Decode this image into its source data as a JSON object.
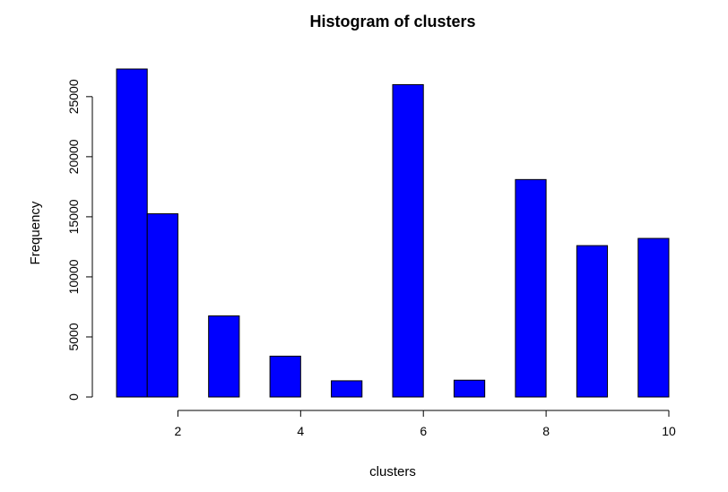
{
  "chart_data": {
    "type": "bar",
    "title": "Histogram of clusters",
    "xlabel": "clusters",
    "ylabel": "Frequency",
    "bar_color": "#0000ff",
    "xlim": [
      1,
      10
    ],
    "ylim": [
      0,
      27300
    ],
    "x_ticks": [
      2,
      4,
      6,
      8,
      10
    ],
    "y_ticks": [
      0,
      5000,
      10000,
      15000,
      20000,
      25000
    ],
    "bins": [
      {
        "start": 1.0,
        "end": 1.5,
        "value": 27300
      },
      {
        "start": 1.5,
        "end": 2.0,
        "value": 15250
      },
      {
        "start": 2.5,
        "end": 3.0,
        "value": 6750
      },
      {
        "start": 3.5,
        "end": 4.0,
        "value": 3400
      },
      {
        "start": 4.5,
        "end": 5.0,
        "value": 1350
      },
      {
        "start": 5.5,
        "end": 6.0,
        "value": 26000
      },
      {
        "start": 6.5,
        "end": 7.0,
        "value": 1400
      },
      {
        "start": 7.5,
        "end": 8.0,
        "value": 18100
      },
      {
        "start": 8.5,
        "end": 9.0,
        "value": 12600
      },
      {
        "start": 9.5,
        "end": 10.0,
        "value": 13200
      }
    ]
  }
}
